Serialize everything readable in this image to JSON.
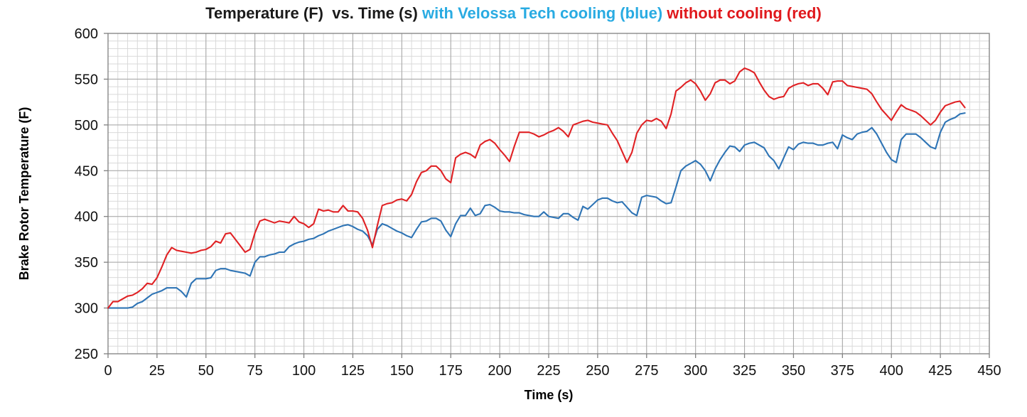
{
  "title": {
    "part1": "Temperature (F)  vs. Time (s) ",
    "part2": "with Velossa Tech cooling (blue) ",
    "part3": "without cooling (red)",
    "part1_color": "#1a1a1a",
    "part2_color": "#29abe2",
    "part3_color": "#e0191d"
  },
  "chart_data": {
    "type": "line",
    "title": "Temperature (F) vs. Time (s) with Velossa Tech cooling (blue) without cooling (red)",
    "xlabel": "Time (s)",
    "ylabel": "Brake Rotor Temperature (F)",
    "xlim": [
      0,
      450
    ],
    "ylim": [
      250,
      600
    ],
    "x_ticks": [
      0,
      25,
      50,
      75,
      100,
      125,
      150,
      175,
      200,
      225,
      250,
      275,
      300,
      325,
      350,
      375,
      400,
      425,
      450
    ],
    "y_ticks": [
      250,
      300,
      350,
      400,
      450,
      500,
      550,
      600
    ],
    "x_minor_step": 5,
    "y_minor_divisions": 42,
    "grid": true,
    "legend_position": "in-title",
    "grid_minor_color": "#d9d9d9",
    "grid_major_color": "#a6a6a6",
    "border_color": "#808080",
    "x_step": 2.5,
    "series": [
      {
        "name": "with Velossa Tech cooling (blue)",
        "color": "#2e74b5",
        "values": [
          300,
          300,
          300,
          300,
          300,
          301,
          305,
          307,
          311,
          315,
          317,
          319,
          322,
          322,
          322,
          318,
          312,
          327,
          332,
          332,
          332,
          333,
          341,
          343,
          343,
          341,
          340,
          339,
          338,
          335,
          350,
          356,
          356,
          358,
          359,
          361,
          361,
          367,
          370,
          372,
          373,
          375,
          376,
          379,
          381,
          384,
          386,
          388,
          390,
          391,
          389,
          386,
          384,
          379,
          369,
          386,
          392,
          390,
          387,
          384,
          382,
          379,
          377,
          386,
          394,
          395,
          398,
          398,
          395,
          385,
          378,
          392,
          401,
          401,
          409,
          401,
          403,
          412,
          413,
          410,
          406,
          405,
          405,
          404,
          404,
          402,
          401,
          400,
          400,
          405,
          400,
          399,
          398,
          403,
          403,
          399,
          396,
          411,
          408,
          413,
          418,
          420,
          420,
          417,
          415,
          416,
          410,
          404,
          401,
          421,
          423,
          422,
          421,
          417,
          414,
          415,
          432,
          450,
          455,
          458,
          461,
          457,
          450,
          439,
          452,
          462,
          470,
          477,
          476,
          471,
          478,
          480,
          481,
          478,
          475,
          466,
          461,
          452,
          464,
          476,
          473,
          479,
          481,
          480,
          480,
          478,
          478,
          480,
          481,
          474,
          489,
          486,
          484,
          490,
          492,
          493,
          497,
          490,
          480,
          470,
          462,
          459,
          484,
          490,
          490,
          490,
          486,
          481,
          476,
          474,
          492,
          503,
          506,
          508,
          512,
          513
        ]
      },
      {
        "name": "without cooling (red)",
        "color": "#e02124",
        "values": [
          300,
          307,
          307,
          310,
          313,
          314,
          317,
          321,
          327,
          326,
          333,
          345,
          358,
          366,
          363,
          362,
          361,
          360,
          361,
          363,
          364,
          367,
          373,
          371,
          381,
          382,
          375,
          368,
          361,
          364,
          382,
          395,
          397,
          395,
          393,
          395,
          394,
          393,
          400,
          394,
          392,
          388,
          392,
          408,
          406,
          407,
          405,
          405,
          412,
          406,
          406,
          405,
          398,
          385,
          366,
          390,
          412,
          414,
          415,
          418,
          419,
          417,
          424,
          438,
          448,
          450,
          455,
          455,
          450,
          441,
          437,
          464,
          468,
          470,
          468,
          464,
          478,
          482,
          484,
          480,
          473,
          467,
          460,
          477,
          492,
          492,
          492,
          490,
          487,
          489,
          492,
          494,
          497,
          493,
          487,
          500,
          502,
          504,
          505,
          503,
          502,
          501,
          500,
          491,
          483,
          471,
          459,
          470,
          491,
          500,
          505,
          504,
          507,
          504,
          496,
          512,
          537,
          541,
          546,
          549,
          545,
          537,
          527,
          534,
          546,
          549,
          549,
          545,
          548,
          558,
          562,
          560,
          557,
          547,
          538,
          531,
          528,
          530,
          531,
          540,
          543,
          545,
          546,
          543,
          545,
          545,
          540,
          533,
          547,
          548,
          548,
          543,
          542,
          541,
          540,
          539,
          534,
          525,
          517,
          511,
          505,
          514,
          522,
          518,
          516,
          514,
          510,
          505,
          500,
          505,
          514,
          521,
          523,
          525,
          526,
          519
        ]
      }
    ]
  }
}
